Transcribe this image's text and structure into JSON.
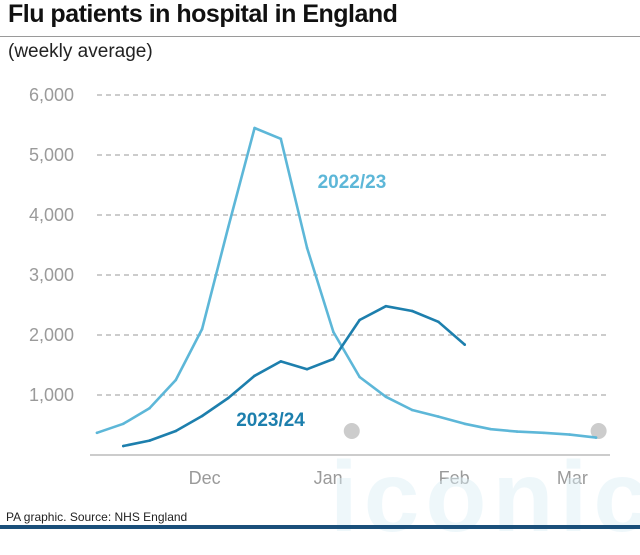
{
  "title": "Flu patients in hospital in England",
  "subtitle": "(weekly average)",
  "source": "PA graphic. Source: NHS England",
  "watermark": "iconic",
  "chart_data": {
    "type": "line",
    "ylim": [
      0,
      6000
    ],
    "yticks": [
      1000,
      2000,
      3000,
      4000,
      5000,
      6000
    ],
    "ytick_labels": [
      "1,000",
      "2,000",
      "3,000",
      "4,000",
      "5,000",
      "6,000"
    ],
    "xlim": [
      0,
      19
    ],
    "xticks": [
      {
        "label": "Dec",
        "x": 4.1
      },
      {
        "label": "Jan",
        "x": 8.8
      },
      {
        "label": "Feb",
        "x": 13.6
      },
      {
        "label": "Mar",
        "x": 18.1
      }
    ],
    "grid": "horizontal dashed",
    "series": [
      {
        "name": "2022/23",
        "color": "#5db7d8",
        "x": [
          0,
          1,
          2,
          3,
          4,
          5,
          6,
          7,
          8,
          9,
          10,
          11,
          12,
          13,
          14,
          15,
          16,
          17,
          18,
          19
        ],
        "values": [
          370,
          520,
          780,
          1250,
          2100,
          3800,
          5450,
          5270,
          3450,
          2050,
          1300,
          970,
          750,
          640,
          520,
          430,
          390,
          370,
          340,
          290
        ]
      },
      {
        "name": "2023/24",
        "color": "#1d7fad",
        "x": [
          1,
          2,
          3,
          4,
          5,
          6,
          7,
          8,
          9,
          10,
          11,
          12,
          13,
          14
        ],
        "values": [
          150,
          240,
          400,
          650,
          950,
          1320,
          1560,
          1430,
          1600,
          2250,
          2480,
          2400,
          2220,
          1840
        ]
      }
    ],
    "series_labels": [
      {
        "series": "2022/23",
        "x": 8.4,
        "y": 4450
      },
      {
        "series": "2023/24",
        "x": 5.3,
        "y": 480
      }
    ],
    "markers": [
      {
        "x": 9.7,
        "y": 250,
        "color": "#cccccc"
      },
      {
        "x": 19.1,
        "y": 250,
        "color": "#cccccc"
      }
    ]
  }
}
